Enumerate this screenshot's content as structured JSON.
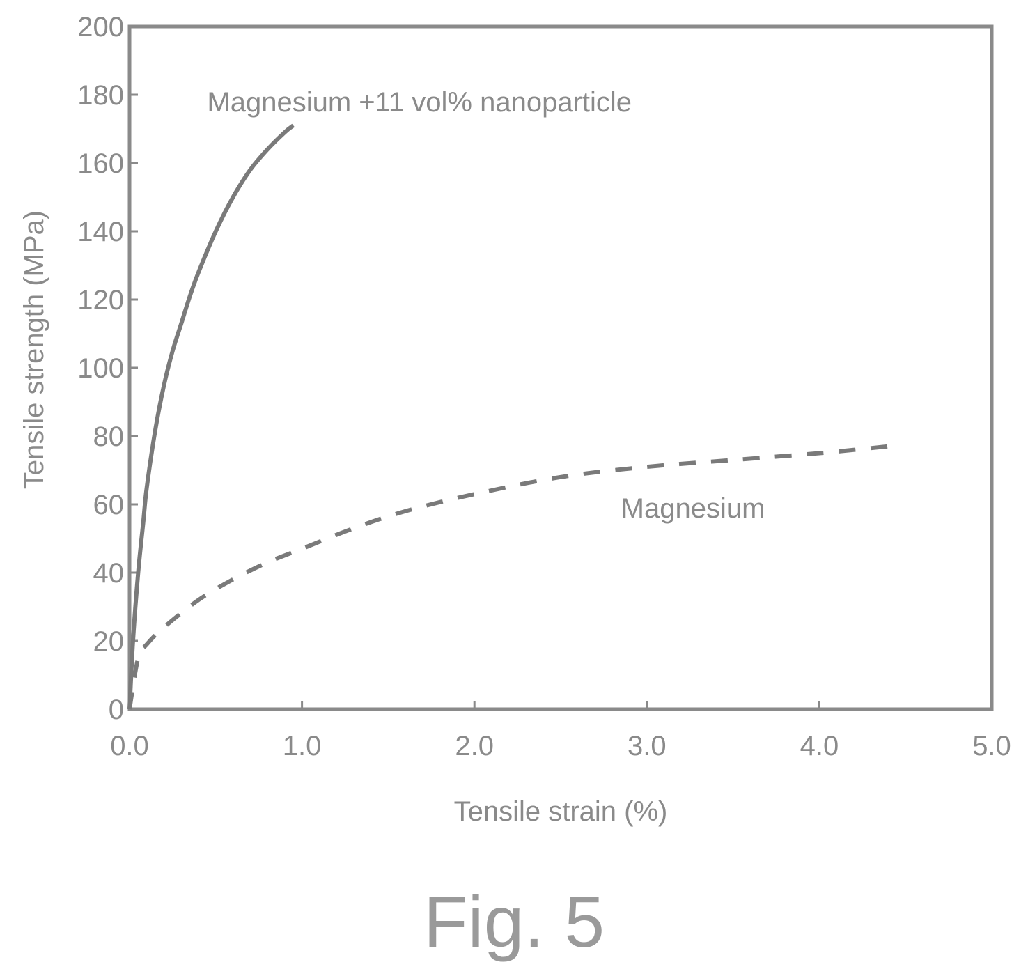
{
  "chart_data": {
    "type": "line",
    "title": "",
    "xlabel": "Tensile strain (%)",
    "ylabel": "Tensile strength (MPa)",
    "xlim": [
      0,
      5
    ],
    "ylim": [
      0,
      200
    ],
    "x_ticks": [
      0,
      1,
      2,
      3,
      4,
      5
    ],
    "x_tick_labels": [
      "0.0",
      "1.0",
      "2.0",
      "3.0",
      "4.0",
      "5.0"
    ],
    "y_ticks": [
      0,
      20,
      40,
      60,
      80,
      100,
      120,
      140,
      160,
      180,
      200
    ],
    "y_tick_labels": [
      "0",
      "20",
      "40",
      "60",
      "80",
      "100",
      "120",
      "140",
      "160",
      "180",
      "200"
    ],
    "grid": false,
    "legend": "none",
    "series": [
      {
        "name": "Magnesium +11 vol% nanoparticle",
        "style": "solid",
        "color": "#7a7a7a",
        "x": [
          0,
          0.02,
          0.05,
          0.08,
          0.1,
          0.15,
          0.2,
          0.25,
          0.3,
          0.35,
          0.4,
          0.5,
          0.6,
          0.7,
          0.8,
          0.9,
          0.95
        ],
        "y": [
          0,
          20,
          40,
          55,
          65,
          82,
          95,
          105,
          113,
          121,
          128,
          140,
          150,
          158,
          164,
          169,
          171
        ]
      },
      {
        "name": "Magnesium",
        "style": "dashed",
        "color": "#7a7a7a",
        "x": [
          0,
          0.05,
          0.1,
          0.2,
          0.4,
          0.6,
          0.8,
          1.0,
          1.3,
          1.6,
          2.0,
          2.5,
          3.0,
          3.5,
          4.0,
          4.4
        ],
        "y": [
          0,
          15,
          19,
          24,
          32,
          38,
          43,
          47,
          53,
          58,
          63,
          68,
          71,
          73,
          75,
          77
        ]
      }
    ],
    "annotations": [
      {
        "text": "Magnesium +11 vol% nanoparticle",
        "x": 0.45,
        "y": 178
      },
      {
        "text": "Magnesium",
        "x": 2.85,
        "y": 59
      }
    ]
  },
  "caption": "Fig. 5"
}
